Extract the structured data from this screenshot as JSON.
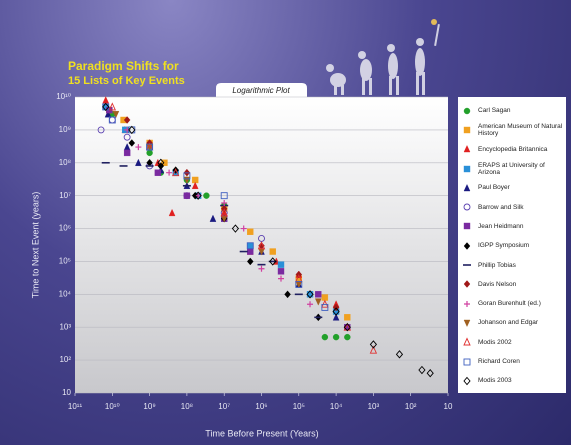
{
  "chart_data": {
    "type": "scatter",
    "title": "Paradigm Shifts for",
    "subtitle": "15 Lists of Key Events",
    "annotation": "Logarithmic Plot",
    "x_label": "Time Before Present (Years)",
    "y_label": "Time to Next Event (years)",
    "xscale": "log",
    "yscale": "log",
    "xlim": [
      100000000000.0,
      10
    ],
    "ylim": [
      10,
      10000000000.0
    ],
    "xticks": [
      {
        "value": 100000000000.0,
        "label": "10¹¹"
      },
      {
        "value": 10000000000.0,
        "label": "10¹⁰"
      },
      {
        "value": 1000000000.0,
        "label": "10⁹"
      },
      {
        "value": 100000000.0,
        "label": "10⁸"
      },
      {
        "value": 10000000.0,
        "label": "10⁷"
      },
      {
        "value": 1000000.0,
        "label": "10⁶"
      },
      {
        "value": 100000.0,
        "label": "10⁵"
      },
      {
        "value": 10000.0,
        "label": "10⁴"
      },
      {
        "value": 1000.0,
        "label": "10³"
      },
      {
        "value": 100,
        "label": "10²"
      },
      10
    ],
    "yticks": [
      {
        "value": 10000000000.0,
        "label": "10¹⁰"
      },
      {
        "value": 1000000000.0,
        "label": "10⁹"
      },
      {
        "value": 100000000.0,
        "label": "10⁸"
      },
      {
        "value": 10000000.0,
        "label": "10⁷"
      },
      {
        "value": 1000000.0,
        "label": "10⁶"
      },
      {
        "value": 100000.0,
        "label": "10⁵"
      },
      {
        "value": 10000.0,
        "label": "10⁴"
      },
      {
        "value": 1000.0,
        "label": "10³"
      },
      {
        "value": 100,
        "label": "10²"
      },
      10
    ],
    "grid": true,
    "legend": "right",
    "series": [
      {
        "name": "Carl Sagan",
        "color": "#22a02a",
        "marker": "circle",
        "filled": true,
        "x": [
          15000000000.0,
          10000000000.0,
          4000000000.0,
          1000000000.0,
          500000000.0,
          100000000.0,
          30000000.0,
          10000000.0,
          2000000.0,
          100000.0,
          20000.0,
          10000.0,
          5000.0
        ],
        "values": [
          5000000000.0,
          3000000000.0,
          1000000000.0,
          200000000.0,
          50000000.0,
          30000000.0,
          10000000.0,
          5000000.0,
          300000.0,
          30000.0,
          500,
          500,
          500
        ]
      },
      {
        "name": "American Museum of Natural History",
        "color": "#f0a020",
        "marker": "square",
        "filled": true,
        "x": [
          12000000000.0,
          5000000000.0,
          1000000000.0,
          400000000.0,
          60000000.0,
          10000000.0,
          2000000.0,
          500000.0,
          100000.0,
          20000.0,
          5000.0
        ],
        "values": [
          4000000000.0,
          2000000000.0,
          400000000.0,
          100000000.0,
          30000000.0,
          4000000.0,
          800000.0,
          200000.0,
          30000.0,
          8000.0,
          2000.0
        ]
      },
      {
        "name": "Encyclopedia Britannica",
        "color": "#e02020",
        "marker": "triangle",
        "filled": true,
        "x": [
          15000000000.0,
          4600000000.0,
          600000000.0,
          250000000.0,
          60000000.0,
          10000000.0,
          2000000.0,
          400000.0,
          100000.0,
          10000.0
        ],
        "values": [
          8000000000.0,
          1000000000.0,
          100000000.0,
          3000000.0,
          20000000.0,
          3000000.0,
          200000.0,
          100000.0,
          40000.0,
          5000.0
        ]
      },
      {
        "name": "ERAPS at University of Arizona",
        "color": "#2a90d8",
        "marker": "square",
        "filled": true,
        "x": [
          15000000000.0,
          4500000000.0,
          1000000000.0,
          200000000.0,
          50000000.0,
          10000000.0,
          2000000.0,
          300000.0,
          50000.0,
          10000.0
        ],
        "values": [
          5000000000.0,
          1000000000.0,
          300000000.0,
          50000000.0,
          10000000.0,
          2000000.0,
          300000.0,
          80000.0,
          10000.0,
          3000.0
        ]
      },
      {
        "name": "Paul Boyer",
        "color": "#1a1a80",
        "marker": "triangle",
        "filled": true,
        "x": [
          13000000000.0,
          4000000000.0,
          2000000000.0,
          500000000.0,
          100000000.0,
          20000000.0,
          1000000.0,
          100000.0,
          10000.0
        ],
        "values": [
          3000000000.0,
          300000000.0,
          100000000.0,
          60000000.0,
          20000000.0,
          2000000.0,
          200000.0,
          20000.0,
          2000.0
        ]
      },
      {
        "name": "Barrow and Silk",
        "color": "#5a40b0",
        "marker": "circle",
        "filled": false,
        "x": [
          20000000000.0,
          10000000000.0,
          4000000000.0,
          1000000000.0,
          100000000.0,
          10000000.0,
          1000000.0
        ],
        "values": [
          1000000000.0,
          2000000000.0,
          600000000.0,
          80000000.0,
          10000000.0,
          3000000.0,
          500000.0
        ]
      },
      {
        "name": "Jean Heidmann",
        "color": "#7a2aa0",
        "marker": "square",
        "filled": true,
        "x": [
          12000000000.0,
          4000000000.0,
          600000000.0,
          100000000.0,
          10000000.0,
          2000000.0,
          300000.0,
          30000.0,
          5000.0
        ],
        "values": [
          4000000000.0,
          200000000.0,
          50000000.0,
          10000000.0,
          2000000.0,
          200000.0,
          50000.0,
          10000.0,
          1000.0
        ]
      },
      {
        "name": "IGPP Symposium",
        "color": "#000000",
        "marker": "diamond",
        "filled": true,
        "x": [
          3000000000.0,
          1000000000.0,
          500000000.0,
          200000000.0,
          60000000.0,
          10000000.0,
          2000000.0,
          200000.0,
          30000.0
        ],
        "values": [
          400000000.0,
          100000000.0,
          80000000.0,
          60000000.0,
          10000000.0,
          2000000.0,
          100000.0,
          10000.0,
          2000.0
        ]
      },
      {
        "name": "Phillip Tobias",
        "color": "#202060",
        "marker": "dash",
        "filled": true,
        "x": [
          15000000000.0,
          5000000000.0,
          1000000000.0,
          100000000.0,
          10000000.0,
          3000000.0,
          1000000.0,
          500000.0,
          100000.0,
          30000.0
        ],
        "values": [
          100000000.0,
          80000000.0,
          80000000.0,
          20000000.0,
          5000000.0,
          200000.0,
          80000.0,
          100000.0,
          10000.0,
          2000.0
        ]
      },
      {
        "name": "Davis Nelson",
        "color": "#a01818",
        "marker": "diamond",
        "filled": true,
        "x": [
          4000000000.0,
          1000000000.0,
          100000000.0,
          10000000.0,
          1000000.0,
          100000.0,
          10000.0
        ],
        "values": [
          2000000000.0,
          400000000.0,
          50000000.0,
          4000000.0,
          300000.0,
          40000.0,
          4000.0
        ]
      },
      {
        "name": "Goran Burenhult (ed.)",
        "color": "#d040a0",
        "marker": "plus",
        "filled": true,
        "x": [
          4000000000.0,
          2000000000.0,
          300000000.0,
          50000000.0,
          10000000.0,
          3000000.0,
          1000000.0,
          300000.0,
          50000.0
        ],
        "values": [
          1000000000.0,
          300000000.0,
          50000000.0,
          10000000.0,
          6000000.0,
          1000000.0,
          60000.0,
          30000.0,
          5000.0
        ]
      },
      {
        "name": "Johanson and Edgar",
        "color": "#a06020",
        "marker": "triangle-down",
        "filled": true,
        "x": [
          8000000000.0,
          1000000000.0,
          100000000.0,
          10000000.0,
          1000000.0,
          100000.0,
          30000.0
        ],
        "values": [
          3000000000.0,
          300000000.0,
          30000000.0,
          2000000.0,
          200000.0,
          20000.0,
          6000.0
        ]
      },
      {
        "name": "Modis 2002",
        "color": "#e03030",
        "marker": "triangle",
        "filled": false,
        "x": [
          10000000000.0,
          1000000000.0,
          200000000.0,
          10000000.0,
          1000000.0,
          100000.0,
          20000.0,
          5000.0,
          1000.0
        ],
        "values": [
          5000000000.0,
          300000000.0,
          50000000.0,
          3000000.0,
          300000.0,
          30000.0,
          5000.0,
          1000.0,
          200
        ]
      },
      {
        "name": "Richard Coren",
        "color": "#4060c0",
        "marker": "square",
        "filled": false,
        "x": [
          15000000000.0,
          10000000000.0,
          3000000000.0,
          1000000000.0,
          100000000.0,
          10000000.0,
          2000000.0,
          100000.0,
          20000.0
        ],
        "values": [
          5000000000.0,
          2000000000.0,
          1000000000.0,
          300000000.0,
          40000000.0,
          10000000.0,
          300000.0,
          20000.0,
          4000.0
        ]
      },
      {
        "name": "Modis 2003",
        "color": "#000000",
        "marker": "diamond",
        "filled": false,
        "x": [
          15000000000.0,
          3000000000.0,
          500000000.0,
          50000000.0,
          5000000.0,
          500000.0,
          50000.0,
          10000.0,
          5000.0,
          1000.0,
          200,
          50,
          30
        ],
        "values": [
          5000000000.0,
          1000000000.0,
          100000000.0,
          10000000.0,
          1000000.0,
          100000.0,
          10000.0,
          3000.0,
          1000.0,
          300,
          150,
          50,
          40
        ]
      }
    ]
  }
}
